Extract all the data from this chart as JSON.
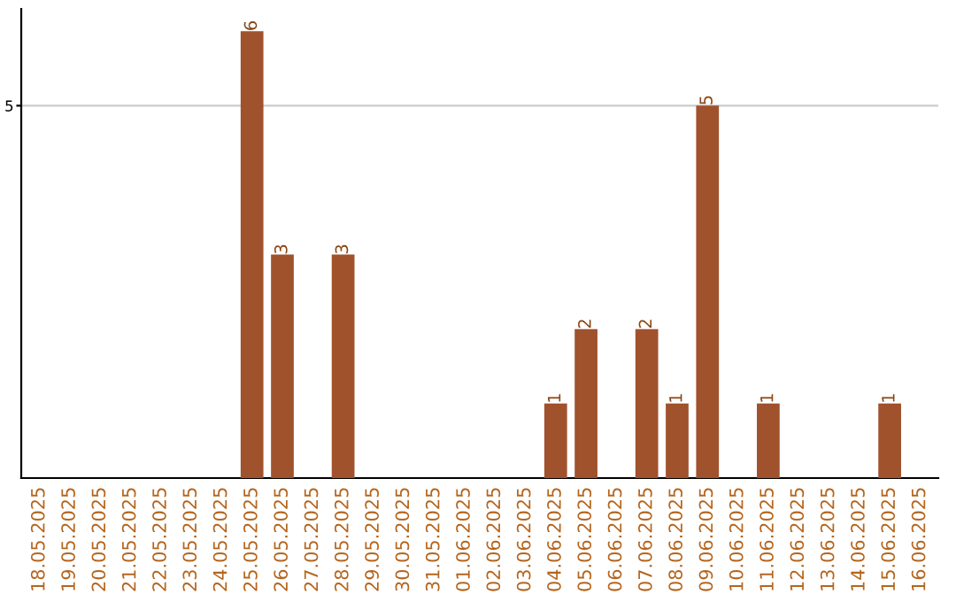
{
  "chart_data": {
    "type": "bar",
    "categories": [
      "18.05.2025",
      "19.05.2025",
      "20.05.2025",
      "21.05.2025",
      "22.05.2025",
      "23.05.2025",
      "24.05.2025",
      "25.05.2025",
      "26.05.2025",
      "27.05.2025",
      "28.05.2025",
      "29.05.2025",
      "30.05.2025",
      "31.05.2025",
      "01.06.2025",
      "02.06.2025",
      "03.06.2025",
      "04.06.2025",
      "05.06.2025",
      "06.06.2025",
      "07.06.2025",
      "08.06.2025",
      "09.06.2025",
      "10.06.2025",
      "11.06.2025",
      "12.06.2025",
      "13.06.2025",
      "14.06.2025",
      "15.06.2025",
      "16.06.2025"
    ],
    "values": [
      0,
      0,
      0,
      0,
      0,
      0,
      0,
      6,
      3,
      0,
      3,
      0,
      0,
      0,
      0,
      0,
      0,
      1,
      2,
      0,
      2,
      1,
      5,
      0,
      1,
      0,
      0,
      0,
      1,
      0
    ],
    "value_labels": [
      null,
      null,
      null,
      null,
      null,
      null,
      null,
      "6",
      "3",
      null,
      "3",
      null,
      null,
      null,
      null,
      null,
      null,
      "1",
      "2",
      null,
      "2",
      "1",
      "5",
      null,
      "1",
      null,
      null,
      null,
      "1",
      null
    ],
    "color": "#a0522d",
    "ylim": [
      0,
      6.3
    ],
    "yticks": [
      5
    ],
    "grid": "y",
    "legend": false
  }
}
